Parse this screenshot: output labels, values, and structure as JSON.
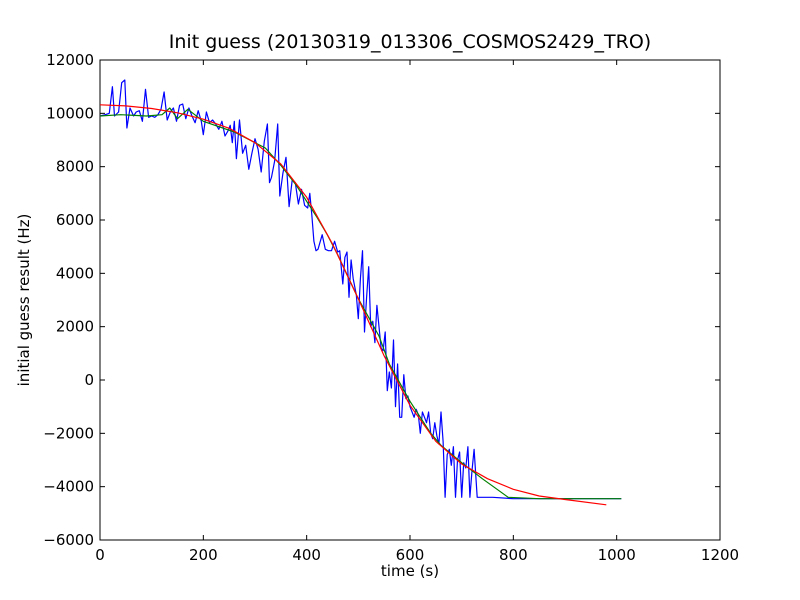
{
  "chart_data": {
    "type": "line",
    "title": "Init guess (20130319_013306_COSMOS2429_TRO)",
    "xlabel": "time (s)",
    "ylabel": "initial guess result (Hz)",
    "xlim": [
      0,
      1200
    ],
    "ylim": [
      -6000,
      12000
    ],
    "xticks": [
      0,
      200,
      400,
      600,
      800,
      1000,
      1200
    ],
    "yticks": [
      -6000,
      -4000,
      -2000,
      0,
      2000,
      4000,
      6000,
      8000,
      10000,
      12000
    ],
    "grid": false,
    "legend": "none",
    "series": [
      {
        "color": "#0000ff",
        "points": [
          [
            0,
            9900
          ],
          [
            10,
            9950
          ],
          [
            18,
            10000
          ],
          [
            24,
            11000
          ],
          [
            28,
            9900
          ],
          [
            36,
            10050
          ],
          [
            42,
            11150
          ],
          [
            48,
            11250
          ],
          [
            52,
            9450
          ],
          [
            58,
            10200
          ],
          [
            65,
            9900
          ],
          [
            70,
            10050
          ],
          [
            76,
            10100
          ],
          [
            82,
            9700
          ],
          [
            88,
            10900
          ],
          [
            94,
            9850
          ],
          [
            100,
            9900
          ],
          [
            106,
            9850
          ],
          [
            112,
            9950
          ],
          [
            118,
            10150
          ],
          [
            124,
            10800
          ],
          [
            130,
            9750
          ],
          [
            136,
            10050
          ],
          [
            142,
            10200
          ],
          [
            148,
            9700
          ],
          [
            154,
            10300
          ],
          [
            160,
            10350
          ],
          [
            166,
            9800
          ],
          [
            172,
            10200
          ],
          [
            178,
            9900
          ],
          [
            184,
            9650
          ],
          [
            190,
            10100
          ],
          [
            196,
            9700
          ],
          [
            200,
            9200
          ],
          [
            206,
            10050
          ],
          [
            212,
            9650
          ],
          [
            218,
            9750
          ],
          [
            224,
            9600
          ],
          [
            230,
            9400
          ],
          [
            236,
            9700
          ],
          [
            242,
            9150
          ],
          [
            248,
            9350
          ],
          [
            252,
            9550
          ],
          [
            256,
            8900
          ],
          [
            260,
            9700
          ],
          [
            264,
            8300
          ],
          [
            270,
            9750
          ],
          [
            276,
            8500
          ],
          [
            282,
            8800
          ],
          [
            288,
            7900
          ],
          [
            294,
            8500
          ],
          [
            300,
            9050
          ],
          [
            306,
            8650
          ],
          [
            312,
            7800
          ],
          [
            318,
            8950
          ],
          [
            324,
            9600
          ],
          [
            328,
            7400
          ],
          [
            332,
            7600
          ],
          [
            338,
            8200
          ],
          [
            344,
            9600
          ],
          [
            348,
            6900
          ],
          [
            354,
            7750
          ],
          [
            360,
            8350
          ],
          [
            366,
            6500
          ],
          [
            372,
            7500
          ],
          [
            378,
            7400
          ],
          [
            384,
            6600
          ],
          [
            390,
            7150
          ],
          [
            396,
            6550
          ],
          [
            402,
            6450
          ],
          [
            406,
            7000
          ],
          [
            410,
            6200
          ],
          [
            414,
            5200
          ],
          [
            418,
            4850
          ],
          [
            422,
            4900
          ],
          [
            430,
            5450
          ],
          [
            436,
            4900
          ],
          [
            442,
            4850
          ],
          [
            448,
            4850
          ],
          [
            454,
            5200
          ],
          [
            460,
            4800
          ],
          [
            464,
            4850
          ],
          [
            470,
            3600
          ],
          [
            474,
            4600
          ],
          [
            478,
            4800
          ],
          [
            482,
            3100
          ],
          [
            486,
            4500
          ],
          [
            490,
            3800
          ],
          [
            496,
            3200
          ],
          [
            500,
            2300
          ],
          [
            504,
            3800
          ],
          [
            508,
            4850
          ],
          [
            512,
            1800
          ],
          [
            516,
            3100
          ],
          [
            520,
            4250
          ],
          [
            524,
            2000
          ],
          [
            528,
            2200
          ],
          [
            532,
            1400
          ],
          [
            536,
            2800
          ],
          [
            540,
            2000
          ],
          [
            544,
            1200
          ],
          [
            548,
            1100
          ],
          [
            552,
            1800
          ],
          [
            556,
            -400
          ],
          [
            560,
            300
          ],
          [
            564,
            -300
          ],
          [
            568,
            1500
          ],
          [
            572,
            -1000
          ],
          [
            576,
            600
          ],
          [
            580,
            -1400
          ],
          [
            584,
            -1400
          ],
          [
            588,
            200
          ],
          [
            592,
            -700
          ],
          [
            596,
            -600
          ],
          [
            600,
            -1000
          ],
          [
            604,
            -1200
          ],
          [
            608,
            -1400
          ],
          [
            612,
            -1100
          ],
          [
            616,
            -1300
          ],
          [
            620,
            -2000
          ],
          [
            624,
            -1200
          ],
          [
            628,
            -1400
          ],
          [
            632,
            -1600
          ],
          [
            636,
            -1200
          ],
          [
            640,
            -2000
          ],
          [
            644,
            -2200
          ],
          [
            648,
            -1600
          ],
          [
            652,
            -2100
          ],
          [
            656,
            -2400
          ],
          [
            660,
            -1200
          ],
          [
            664,
            -2300
          ],
          [
            668,
            -4400
          ],
          [
            672,
            -2800
          ],
          [
            676,
            -2600
          ],
          [
            680,
            -3200
          ],
          [
            684,
            -2500
          ],
          [
            688,
            -4400
          ],
          [
            692,
            -3000
          ],
          [
            696,
            -2700
          ],
          [
            700,
            -4400
          ],
          [
            704,
            -3100
          ],
          [
            708,
            -3300
          ],
          [
            712,
            -2500
          ],
          [
            716,
            -4400
          ],
          [
            720,
            -3400
          ],
          [
            724,
            -2600
          ],
          [
            730,
            -4400
          ],
          [
            760,
            -4400
          ],
          [
            800,
            -4450
          ],
          [
            850,
            -4450
          ],
          [
            900,
            -4450
          ],
          [
            950,
            -4450
          ],
          [
            1009,
            -4450
          ]
        ]
      },
      {
        "color": "#008000",
        "points": [
          [
            0,
            9900
          ],
          [
            40,
            9950
          ],
          [
            90,
            9900
          ],
          [
            120,
            9950
          ],
          [
            135,
            10200
          ],
          [
            150,
            9800
          ],
          [
            170,
            10150
          ],
          [
            200,
            9700
          ],
          [
            260,
            9300
          ],
          [
            320,
            8700
          ],
          [
            350,
            8050
          ],
          [
            380,
            7300
          ],
          [
            420,
            6100
          ],
          [
            440,
            5450
          ],
          [
            460,
            4700
          ],
          [
            500,
            3050
          ],
          [
            540,
            1650
          ],
          [
            560,
            600
          ],
          [
            600,
            -800
          ],
          [
            640,
            -2000
          ],
          [
            660,
            -2450
          ],
          [
            700,
            -3100
          ],
          [
            740,
            -3700
          ],
          [
            790,
            -4400
          ],
          [
            850,
            -4450
          ],
          [
            900,
            -4450
          ],
          [
            1009,
            -4450
          ]
        ]
      },
      {
        "color": "#ff0000",
        "points": [
          [
            0,
            10320
          ],
          [
            50,
            10280
          ],
          [
            100,
            10180
          ],
          [
            150,
            10020
          ],
          [
            200,
            9780
          ],
          [
            250,
            9440
          ],
          [
            300,
            8900
          ],
          [
            350,
            8100
          ],
          [
            400,
            6850
          ],
          [
            450,
            5100
          ],
          [
            500,
            3050
          ],
          [
            550,
            900
          ],
          [
            600,
            -950
          ],
          [
            650,
            -2300
          ],
          [
            700,
            -3150
          ],
          [
            750,
            -3700
          ],
          [
            800,
            -4100
          ],
          [
            850,
            -4350
          ],
          [
            900,
            -4480
          ],
          [
            980,
            -4680
          ]
        ]
      }
    ]
  }
}
